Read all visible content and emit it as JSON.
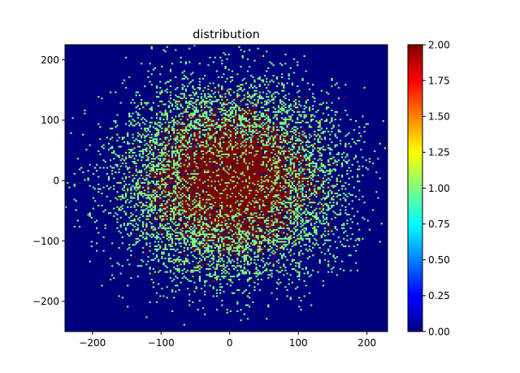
{
  "chart_data": {
    "type": "heatmap",
    "title": "distribution",
    "xlabel": "",
    "ylabel": "",
    "xlim": [
      -240,
      230
    ],
    "ylim": [
      -250,
      225
    ],
    "x_ticks": [
      -200,
      -100,
      0,
      100,
      200
    ],
    "y_ticks": [
      -200,
      -100,
      0,
      100,
      200
    ],
    "x_tick_labels": [
      "−200",
      "−100",
      "0",
      "100",
      "200"
    ],
    "y_tick_labels": [
      "−200",
      "−100",
      "0",
      "100",
      "200"
    ],
    "colormap": "jet",
    "vmin": 0.0,
    "vmax": 2.0,
    "colorbar_ticks": [
      0.0,
      0.25,
      0.5,
      0.75,
      1.0,
      1.25,
      1.5,
      1.75,
      2.0
    ],
    "colorbar_tick_labels": [
      "0.00",
      "0.25",
      "0.50",
      "0.75",
      "1.00",
      "1.25",
      "1.50",
      "1.75",
      "2.00"
    ],
    "distribution": {
      "kind": "2D gaussian point counts per bin",
      "center": [
        0,
        0
      ],
      "std": [
        70,
        70
      ],
      "bin_size": 2.5,
      "value_range": [
        0,
        2
      ]
    },
    "grid": false,
    "colors": {
      "low": "#00007f",
      "mid": "#7fff7f",
      "high": "#7f0000"
    }
  }
}
